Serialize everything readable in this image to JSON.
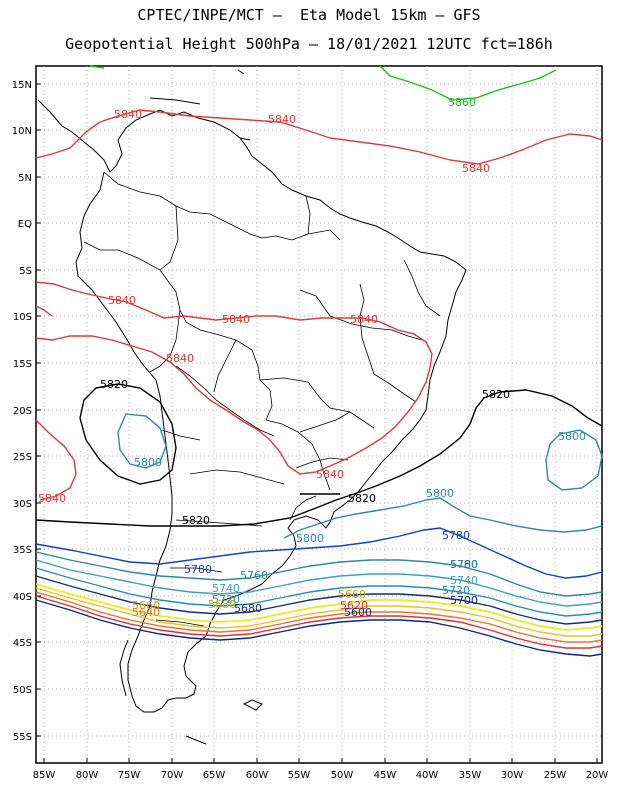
{
  "title_line1": "CPTEC/INPE/MCT –  Eta Model 15km – GFS",
  "title_line2": "Geopotential Height 500hPa – 18/01/2021 12UTC fct=186h",
  "lat_ticks": [
    "15N",
    "10N",
    "5N",
    "EQ",
    "5S",
    "10S",
    "15S",
    "20S",
    "25S",
    "30S",
    "35S",
    "40S",
    "45S",
    "50S",
    "55S"
  ],
  "lon_ticks": [
    "85W",
    "80W",
    "75W",
    "70W",
    "65W",
    "60W",
    "55W",
    "50W",
    "45W",
    "40W",
    "35W",
    "30W",
    "25W",
    "20W"
  ],
  "colors": {
    "c5580": "#1a1a6e",
    "c5600": "#0a2a80",
    "c5620": "#e03030",
    "c5640": "#f07030",
    "c5660": "#f0c020",
    "c5680": "#f0e820",
    "c5700": "#103070",
    "c5720": "#2090b0",
    "c5740": "#3aa0c0",
    "c5760": "#2a8aa0",
    "c5780": "#1040d0",
    "c5800": "#2e8aa8",
    "c5820": "#000000",
    "c5840": "#e03a3a",
    "c5860": "#20c020"
  },
  "contour_labels": {
    "l5860_top": "5860",
    "l5840_a": "5840",
    "l5840_b": "5840",
    "l5840_c": "5840",
    "l5840_d": "5840",
    "l5840_e": "5840",
    "l5840_f": "5840",
    "l5840_g": "5840",
    "l5840_h": "5840",
    "l5840_i": "5840",
    "l5820_a": "5820",
    "l5820_b": "5820",
    "l5820_c": "5820",
    "l5820_d": "5820",
    "l5800_a": "5800",
    "l5800_b": "5800",
    "l5800_c": "5800",
    "l5800_d": "5800",
    "l5780_a": "5780",
    "l5780_b": "5780",
    "l5780_c": "5780",
    "l5760_a": "5760",
    "l5760_b": "5760",
    "l5740_a": "5740",
    "l5740_b": "5740",
    "l5720_a": "5720",
    "l5720_b": "5720",
    "l5700_a": "5700",
    "l5680_a": "5680",
    "l5680_b": "5680",
    "l5660_a": "5660",
    "l5660_b": "5660",
    "l5640_a": "5640",
    "l5620_a": "5620",
    "l5600_a": "5600"
  }
}
